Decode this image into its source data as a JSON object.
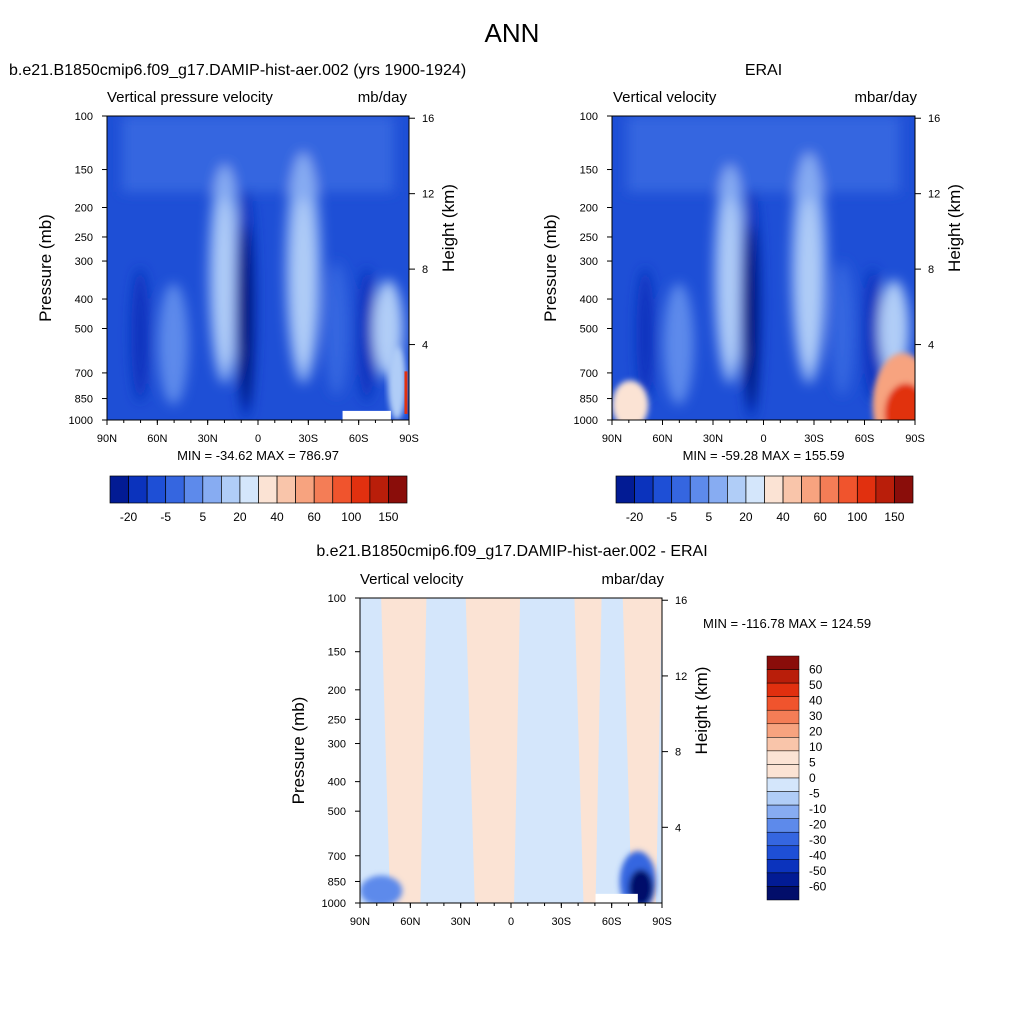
{
  "page_title": "ANN",
  "colors": {
    "pos": [
      "#fbe3d4",
      "#f9c5aa",
      "#f7a37f",
      "#f47d56",
      "#f0542d",
      "#e1300f",
      "#b91e0a",
      "#8a0d0a"
    ],
    "neg": [
      "#d4e6fb",
      "#b0cdf7",
      "#87acf2",
      "#5d8aeb",
      "#3566e0",
      "#1e4fd6",
      "#0b33bd",
      "#021b94",
      "#020e6a"
    ]
  },
  "chart_data": [
    {
      "type": "heatmap",
      "title": "b.e21.B1850cmip6.f09_g17.DAMIP-hist-aer.002 (yrs 1900-1924)",
      "left_label": "Vertical pressure velocity",
      "right_label": "mb/day",
      "ylabel": "Pressure (mb)",
      "y2label": "Height (km)",
      "x_ticks": [
        "90N",
        "60N",
        "30N",
        "0",
        "30S",
        "60S",
        "90S"
      ],
      "y_ticks": [
        "100",
        "150",
        "200",
        "250",
        "300",
        "400",
        "500",
        "700",
        "850",
        "1000"
      ],
      "y2_ticks": [
        "16",
        "12",
        "8",
        "4"
      ],
      "stats": "MIN = -34.62  MAX = 786.97",
      "colorbar_ticks": [
        "-20",
        "-5",
        "5",
        "20",
        "40",
        "60",
        "100",
        "150"
      ],
      "min": -34.62,
      "max": 786.97
    },
    {
      "type": "heatmap",
      "title": "ERAI",
      "left_label": "Vertical velocity",
      "right_label": "mbar/day",
      "ylabel": "Pressure (mb)",
      "y2label": "Height (km)",
      "x_ticks": [
        "90N",
        "60N",
        "30N",
        "0",
        "30S",
        "60S",
        "90S"
      ],
      "y_ticks": [
        "100",
        "150",
        "200",
        "250",
        "300",
        "400",
        "500",
        "700",
        "850",
        "1000"
      ],
      "y2_ticks": [
        "16",
        "12",
        "8",
        "4"
      ],
      "stats": "MIN = -59.28  MAX = 155.59",
      "colorbar_ticks": [
        "-20",
        "-5",
        "5",
        "20",
        "40",
        "60",
        "100",
        "150"
      ],
      "min": -59.28,
      "max": 155.59
    },
    {
      "type": "heatmap",
      "title": "b.e21.B1850cmip6.f09_g17.DAMIP-hist-aer.002 - ERAI",
      "left_label": "Vertical velocity",
      "right_label": "mbar/day",
      "ylabel": "Pressure (mb)",
      "y2label": "Height (km)",
      "x_ticks": [
        "90N",
        "60N",
        "30N",
        "0",
        "30S",
        "60S",
        "90S"
      ],
      "y_ticks": [
        "100",
        "150",
        "200",
        "250",
        "300",
        "400",
        "500",
        "700",
        "850",
        "1000"
      ],
      "y2_ticks": [
        "16",
        "12",
        "8",
        "4"
      ],
      "stats": "MIN = -116.78  MAX = 124.59",
      "colorbar_ticks": [
        "60",
        "50",
        "40",
        "30",
        "20",
        "10",
        "5",
        "0",
        "-5",
        "-10",
        "-20",
        "-30",
        "-40",
        "-50",
        "-60"
      ],
      "min": -116.78,
      "max": 124.59
    }
  ]
}
